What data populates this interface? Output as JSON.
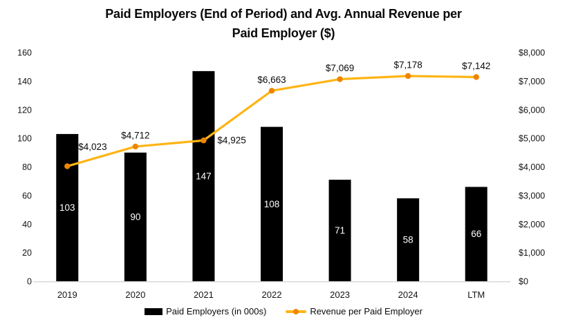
{
  "chart_data": {
    "type": "combo",
    "title": "Paid Employers (End of Period) and Avg. Annual Revenue per Paid Employer ($)",
    "title_lines": [
      "Paid Employers (End of Period) and Avg. Annual Revenue per",
      "Paid Employer ($)"
    ],
    "categories": [
      "2019",
      "2020",
      "2021",
      "2022",
      "2023",
      "2024",
      "LTM"
    ],
    "series": [
      {
        "name": "Paid Employers (in 000s)",
        "type": "bar",
        "axis": "left",
        "color": "#000000",
        "values": [
          103,
          90,
          147,
          108,
          71,
          58,
          66
        ],
        "labels": [
          "103",
          "90",
          "147",
          "108",
          "71",
          "58",
          "66"
        ],
        "label_color": "#ffffff"
      },
      {
        "name": "Revenue per Paid Employer",
        "type": "line",
        "axis": "right",
        "color": "#ffb414",
        "marker_color": "#ee8500",
        "values": [
          4023,
          4712,
          4925,
          6663,
          7069,
          7178,
          7142
        ],
        "labels": [
          "$4,023",
          "$4,712",
          "$4,925",
          "$6,663",
          "$7,069",
          "$7,178",
          "$7,142"
        ],
        "label_positions": [
          "above-right",
          "above",
          "right",
          "above",
          "above",
          "above",
          "above"
        ],
        "label_color": "#0a0a0a"
      }
    ],
    "axes": {
      "left": {
        "min": 0,
        "max": 160,
        "step": 20,
        "tick_labels": [
          "0",
          "20",
          "40",
          "60",
          "80",
          "100",
          "120",
          "140",
          "160"
        ]
      },
      "right": {
        "min": 0,
        "max": 8000,
        "step": 1000,
        "tick_labels": [
          "$0",
          "$1,000",
          "$2,000",
          "$3,000",
          "$4,000",
          "$5,000",
          "$6,000",
          "$7,000",
          "$8,000"
        ]
      }
    },
    "legend": {
      "position": "bottom",
      "items": [
        {
          "label": "Paid Employers (in 000s)",
          "swatch": "bar",
          "color": "#000000"
        },
        {
          "label": "Revenue per Paid Employer",
          "swatch": "line-marker",
          "color": "#ffb414",
          "marker_color": "#ee8500"
        }
      ]
    },
    "grid": false,
    "axis_line_color": "#d9d9d9",
    "text_color": "#141414"
  }
}
